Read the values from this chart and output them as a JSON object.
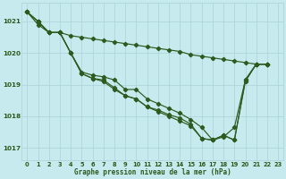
{
  "background_color": "#c6eaed",
  "grid_color": "#aad4d8",
  "line_color": "#2d5a1e",
  "title": "Graphe pression niveau de la mer (hPa)",
  "xlim": [
    -0.5,
    23.5
  ],
  "ylim": [
    1016.6,
    1021.6
  ],
  "yticks": [
    1017,
    1018,
    1019,
    1020,
    1021
  ],
  "xticks": [
    0,
    1,
    2,
    3,
    4,
    5,
    6,
    7,
    8,
    9,
    10,
    11,
    12,
    13,
    14,
    15,
    16,
    17,
    18,
    19,
    20,
    21,
    22,
    23
  ],
  "series1_x": [
    0,
    1,
    2,
    3,
    4,
    5,
    6,
    7,
    8,
    9,
    10,
    11,
    12,
    13,
    14,
    15,
    16,
    17,
    18,
    19,
    20,
    21,
    22
  ],
  "series1_y": [
    1021.3,
    1020.9,
    1020.65,
    1020.65,
    1020.55,
    1020.5,
    1020.45,
    1020.4,
    1020.35,
    1020.3,
    1020.25,
    1020.2,
    1020.15,
    1020.1,
    1020.05,
    1019.95,
    1019.9,
    1019.85,
    1019.8,
    1019.75,
    1019.7,
    1019.65,
    1019.65
  ],
  "series2_x": [
    0,
    1,
    2,
    3,
    4,
    5,
    6,
    7,
    8,
    9,
    10,
    11,
    12,
    13,
    14,
    15,
    16,
    17,
    18,
    19,
    20,
    21,
    22
  ],
  "series2_y": [
    1021.3,
    1021.0,
    1020.65,
    1020.65,
    1020.0,
    1019.4,
    1019.3,
    1019.25,
    1019.15,
    1018.85,
    1018.85,
    1018.55,
    1018.4,
    1018.25,
    1018.1,
    1017.9,
    1017.65,
    1017.25,
    1017.35,
    1017.65,
    1019.15,
    1019.65,
    1019.65
  ],
  "series3_x": [
    0,
    1,
    2,
    3,
    4,
    5,
    6,
    7,
    8,
    9,
    10,
    11,
    12,
    13,
    14,
    15,
    16,
    17,
    18,
    19,
    20,
    21,
    22
  ],
  "series3_y": [
    1021.3,
    1021.0,
    1020.65,
    1020.65,
    1020.0,
    1019.35,
    1019.2,
    1019.15,
    1018.9,
    1018.65,
    1018.55,
    1018.3,
    1018.2,
    1018.05,
    1017.95,
    1017.75,
    1017.3,
    1017.25,
    1017.4,
    1017.25,
    1019.15,
    1019.65,
    1019.65
  ],
  "series4_x": [
    0,
    1,
    2,
    3,
    4,
    5,
    6,
    7,
    8,
    9,
    10,
    11,
    12,
    13,
    14,
    15,
    16,
    17,
    18,
    19,
    20,
    21,
    22
  ],
  "series4_y": [
    1021.3,
    1021.0,
    1020.65,
    1020.65,
    1020.0,
    1019.35,
    1019.2,
    1019.1,
    1018.85,
    1018.65,
    1018.55,
    1018.3,
    1018.15,
    1018.0,
    1017.85,
    1017.7,
    1017.3,
    1017.25,
    1017.4,
    1017.25,
    1019.1,
    1019.65,
    1019.65
  ]
}
